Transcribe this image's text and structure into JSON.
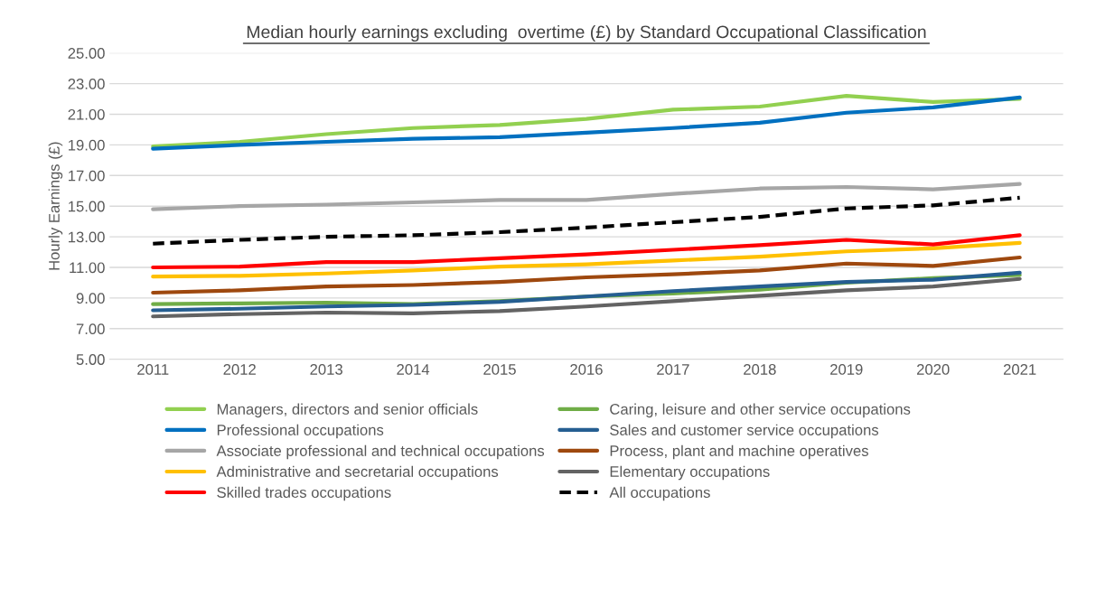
{
  "chart_data": {
    "type": "line",
    "title": "Median hourly earnings excluding  overtime (£) by Standard Occupational Classification",
    "ylabel": "Hourly Earnings (£)",
    "categories": [
      "2011",
      "2012",
      "2013",
      "2014",
      "2015",
      "2016",
      "2017",
      "2018",
      "2019",
      "2020",
      "2021"
    ],
    "ylim": [
      5,
      25
    ],
    "yticks": [
      {
        "value": 5,
        "label": "5.00"
      },
      {
        "value": 7,
        "label": "7.00"
      },
      {
        "value": 9,
        "label": "9.00"
      },
      {
        "value": 11,
        "label": "11.00"
      },
      {
        "value": 13,
        "label": "13.00"
      },
      {
        "value": 15,
        "label": "15.00"
      },
      {
        "value": 17,
        "label": "17.00"
      },
      {
        "value": 19,
        "label": "19.00"
      },
      {
        "value": 21,
        "label": "21.00"
      },
      {
        "value": 23,
        "label": "23.00"
      },
      {
        "value": 25,
        "label": "25.00"
      }
    ],
    "grid": "y",
    "legend": "bottom",
    "series": [
      {
        "name": "Managers, directors and senior officials",
        "color": "#92d050",
        "values": [
          18.9,
          19.2,
          19.7,
          20.1,
          20.3,
          20.7,
          21.3,
          21.5,
          22.2,
          21.8,
          22.0
        ]
      },
      {
        "name": "Professional occupations",
        "color": "#0070c0",
        "values": [
          18.75,
          19.0,
          19.2,
          19.4,
          19.5,
          19.8,
          20.1,
          20.45,
          21.1,
          21.45,
          22.1
        ]
      },
      {
        "name": "Associate professional and technical occupations",
        "color": "#a6a6a6",
        "values": [
          14.8,
          15.0,
          15.1,
          15.25,
          15.4,
          15.4,
          15.8,
          16.15,
          16.25,
          16.1,
          16.45
        ]
      },
      {
        "name": "Administrative and secretarial occupations",
        "color": "#ffc000",
        "values": [
          10.4,
          10.45,
          10.6,
          10.8,
          11.05,
          11.2,
          11.45,
          11.7,
          12.05,
          12.25,
          12.6
        ]
      },
      {
        "name": "Skilled trades occupations",
        "color": "#ff0000",
        "values": [
          11.0,
          11.05,
          11.35,
          11.35,
          11.6,
          11.85,
          12.15,
          12.45,
          12.8,
          12.5,
          13.1
        ]
      },
      {
        "name": "Caring, leisure and other service occupations",
        "color": "#70ad47",
        "values": [
          8.6,
          8.65,
          8.7,
          8.6,
          8.8,
          9.1,
          9.3,
          9.55,
          10.0,
          10.3,
          10.5
        ]
      },
      {
        "name": "Sales and customer service occupations",
        "color": "#255e91",
        "values": [
          8.2,
          8.3,
          8.45,
          8.55,
          8.75,
          9.1,
          9.45,
          9.75,
          10.05,
          10.2,
          10.65
        ]
      },
      {
        "name": "Process, plant and machine operatives",
        "color": "#9e480e",
        "values": [
          9.35,
          9.5,
          9.75,
          9.85,
          10.05,
          10.35,
          10.55,
          10.8,
          11.25,
          11.1,
          11.65
        ]
      },
      {
        "name": "Elementary occupations",
        "color": "#636363",
        "values": [
          7.8,
          7.95,
          8.05,
          8.0,
          8.15,
          8.45,
          8.8,
          9.15,
          9.5,
          9.75,
          10.25
        ]
      },
      {
        "name": "All occupations",
        "color": "#000000",
        "line_style": "dashed",
        "values": [
          12.55,
          12.8,
          13.0,
          13.1,
          13.3,
          13.6,
          13.95,
          14.3,
          14.85,
          15.05,
          15.55
        ]
      }
    ]
  }
}
